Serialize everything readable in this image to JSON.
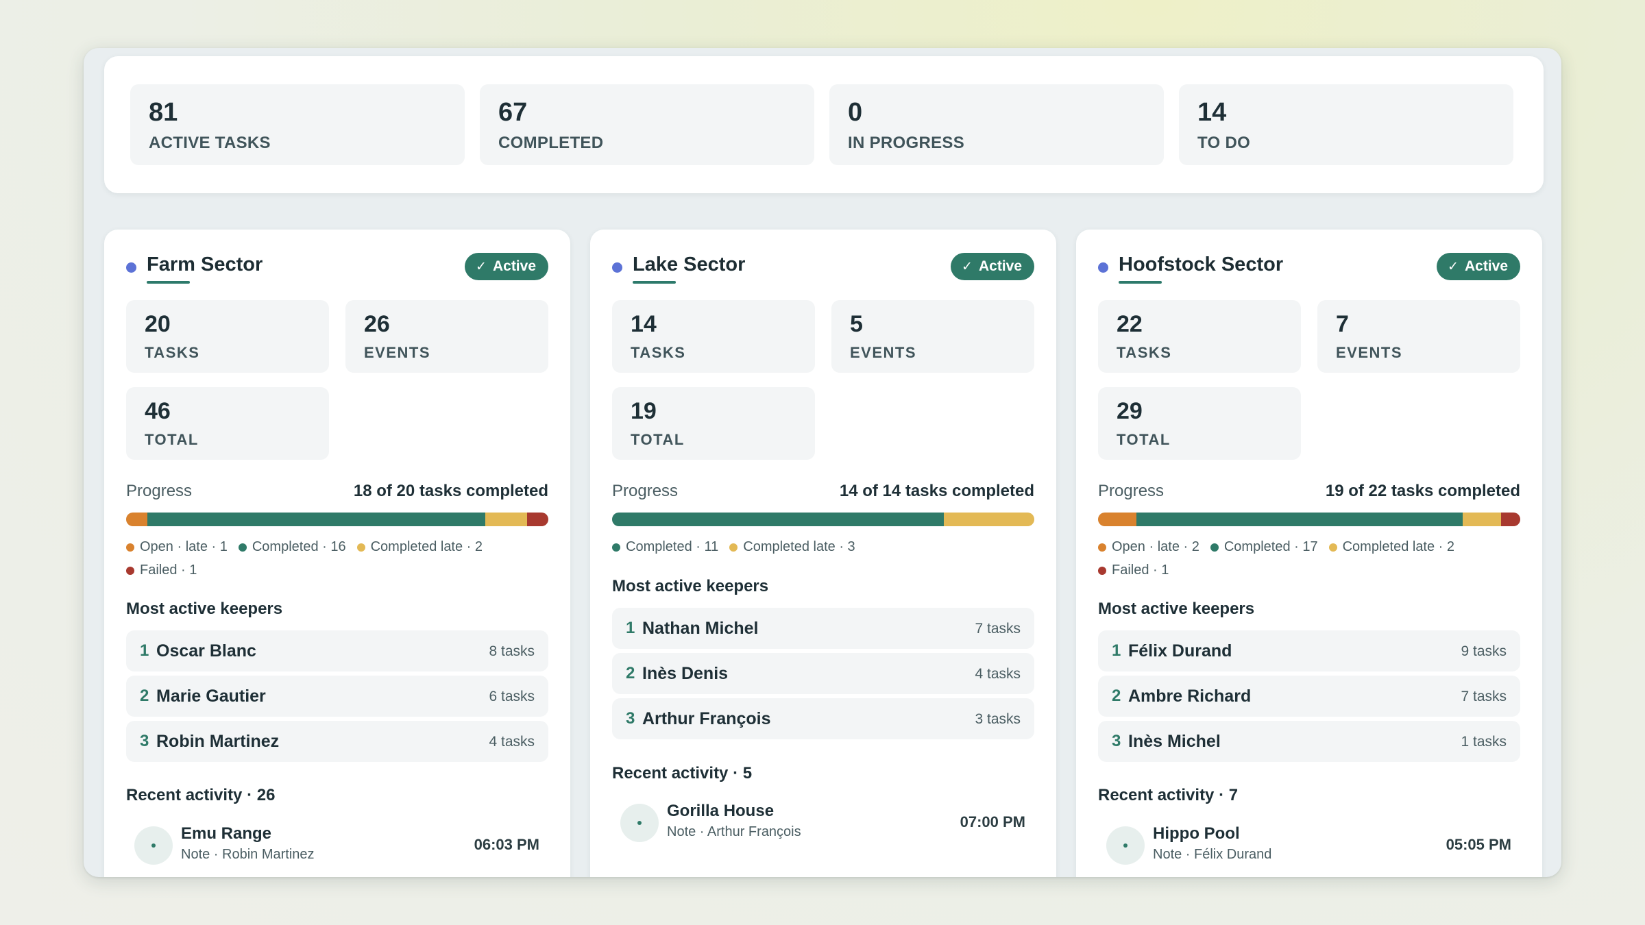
{
  "summary": [
    {
      "value": "81",
      "label": "ACTIVE TASKS"
    },
    {
      "value": "67",
      "label": "COMPLETED"
    },
    {
      "value": "0",
      "label": "IN PROGRESS"
    },
    {
      "value": "14",
      "label": "TO DO"
    }
  ],
  "colors": {
    "open_late": "#d9822e",
    "completed": "#2f7a68",
    "completed_late": "#e3b955",
    "failed": "#a8392f",
    "accent_dot": "#5c72d6"
  },
  "sectors": [
    {
      "name": "Farm Sector",
      "badge": "Active",
      "tasks": {
        "value": "20",
        "label": "TASKS"
      },
      "events": {
        "value": "26",
        "label": "EVENTS"
      },
      "total": {
        "value": "46",
        "label": "TOTAL"
      },
      "progress_label": "Progress",
      "progress_summary": "18 of 20 tasks completed",
      "bar": [
        {
          "key": "open_late",
          "count": 1
        },
        {
          "key": "completed",
          "count": 16
        },
        {
          "key": "completed_late",
          "count": 2
        },
        {
          "key": "failed",
          "count": 1
        }
      ],
      "legend": [
        {
          "key": "open_late",
          "text": "Open · late · 1"
        },
        {
          "key": "completed",
          "text": "Completed · 16"
        },
        {
          "key": "completed_late",
          "text": "Completed late · 2"
        },
        {
          "key": "failed",
          "text": "Failed · 1"
        }
      ],
      "keepers_title": "Most active keepers",
      "keepers": [
        {
          "rank": "1",
          "name": "Oscar Blanc",
          "count": "8 tasks"
        },
        {
          "rank": "2",
          "name": "Marie Gautier",
          "count": "6 tasks"
        },
        {
          "rank": "3",
          "name": "Robin Martinez",
          "count": "4 tasks"
        }
      ],
      "activity_title": "Recent activity · 26",
      "activities": [
        {
          "name": "Emu Range",
          "sub": "Note · Robin Martinez",
          "time": "06:03 PM"
        }
      ]
    },
    {
      "name": "Lake Sector",
      "badge": "Active",
      "tasks": {
        "value": "14",
        "label": "TASKS"
      },
      "events": {
        "value": "5",
        "label": "EVENTS"
      },
      "total": {
        "value": "19",
        "label": "TOTAL"
      },
      "progress_label": "Progress",
      "progress_summary": "14 of 14 tasks completed",
      "bar": [
        {
          "key": "completed",
          "count": 11
        },
        {
          "key": "completed_late",
          "count": 3
        }
      ],
      "legend": [
        {
          "key": "completed",
          "text": "Completed · 11"
        },
        {
          "key": "completed_late",
          "text": "Completed late · 3"
        }
      ],
      "keepers_title": "Most active keepers",
      "keepers": [
        {
          "rank": "1",
          "name": "Nathan Michel",
          "count": "7 tasks"
        },
        {
          "rank": "2",
          "name": "Inès Denis",
          "count": "4 tasks"
        },
        {
          "rank": "3",
          "name": "Arthur François",
          "count": "3 tasks"
        }
      ],
      "activity_title": "Recent activity · 5",
      "activities": [
        {
          "name": "Gorilla House",
          "sub": "Note · Arthur François",
          "time": "07:00 PM"
        }
      ]
    },
    {
      "name": "Hoofstock Sector",
      "badge": "Active",
      "tasks": {
        "value": "22",
        "label": "TASKS"
      },
      "events": {
        "value": "7",
        "label": "EVENTS"
      },
      "total": {
        "value": "29",
        "label": "TOTAL"
      },
      "progress_label": "Progress",
      "progress_summary": "19 of 22 tasks completed",
      "bar": [
        {
          "key": "open_late",
          "count": 2
        },
        {
          "key": "completed",
          "count": 17
        },
        {
          "key": "completed_late",
          "count": 2
        },
        {
          "key": "failed",
          "count": 1
        }
      ],
      "legend": [
        {
          "key": "open_late",
          "text": "Open · late · 2"
        },
        {
          "key": "completed",
          "text": "Completed · 17"
        },
        {
          "key": "completed_late",
          "text": "Completed late · 2"
        },
        {
          "key": "failed",
          "text": "Failed · 1"
        }
      ],
      "keepers_title": "Most active keepers",
      "keepers": [
        {
          "rank": "1",
          "name": "Félix Durand",
          "count": "9 tasks"
        },
        {
          "rank": "2",
          "name": "Ambre Richard",
          "count": "7 tasks"
        },
        {
          "rank": "3",
          "name": "Inès Michel",
          "count": "1 tasks"
        }
      ],
      "activity_title": "Recent activity · 7",
      "activities": [
        {
          "name": "Hippo Pool",
          "sub": "Note · Félix Durand",
          "time": "05:05 PM"
        }
      ]
    }
  ]
}
